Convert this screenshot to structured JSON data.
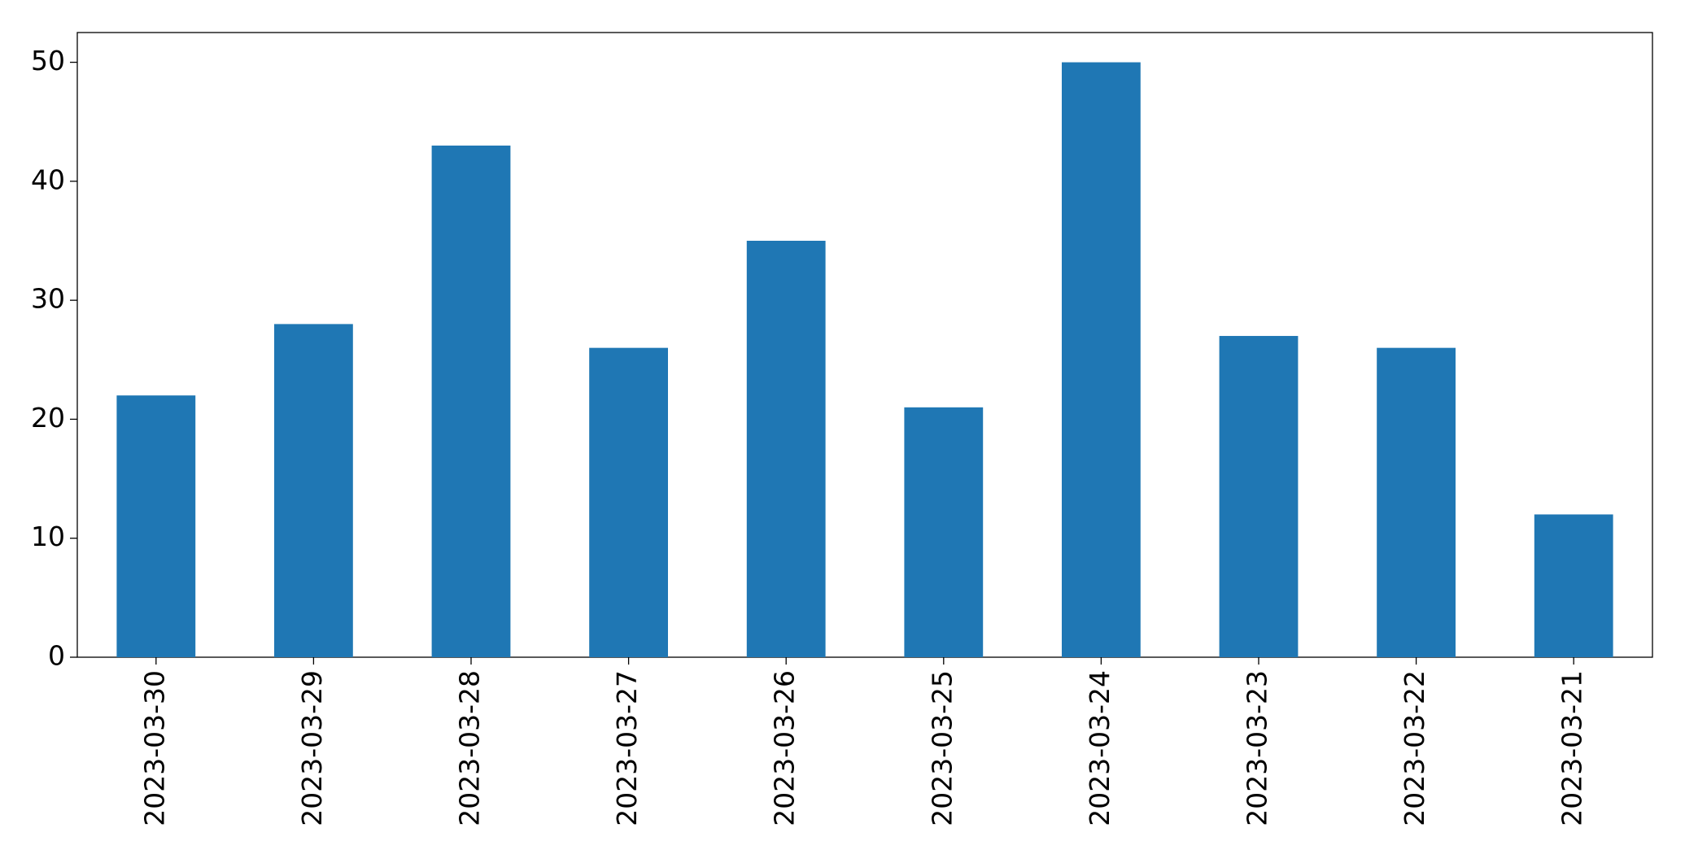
{
  "chart_data": {
    "type": "bar",
    "categories": [
      "2023-03-30",
      "2023-03-29",
      "2023-03-28",
      "2023-03-27",
      "2023-03-26",
      "2023-03-25",
      "2023-03-24",
      "2023-03-23",
      "2023-03-22",
      "2023-03-21"
    ],
    "values": [
      22,
      28,
      43,
      26,
      35,
      21,
      50,
      27,
      26,
      12
    ],
    "color": "#1f77b4",
    "ylim": [
      0,
      52.5
    ],
    "yticks": [
      0,
      10,
      20,
      30,
      40,
      50
    ],
    "grid": false
  }
}
